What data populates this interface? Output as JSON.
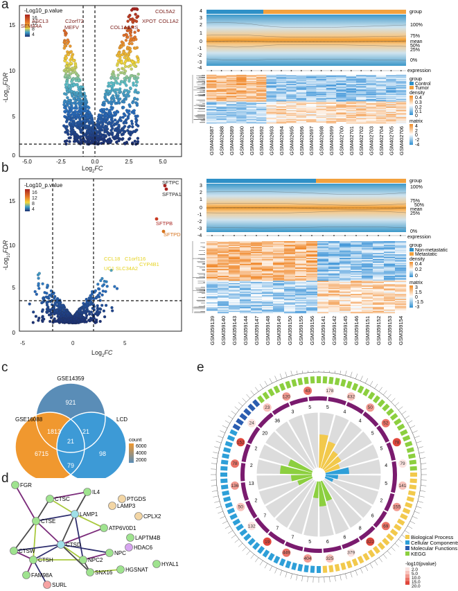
{
  "panel_letters": [
    "a",
    "b",
    "c",
    "d",
    "e"
  ],
  "panel_a": {
    "legend_title": "-Log10_p.value",
    "legend_ticks": [
      "16",
      "12",
      "8",
      "4"
    ],
    "ylabel": "-Log10FDR",
    "xlabel": "Log2FC",
    "xticks": [
      "-5.0",
      "-2.5",
      "0.0",
      "2.5",
      "5.0"
    ],
    "yticks": [
      "0",
      "5",
      "10",
      "15"
    ],
    "gene_labels": [
      "ASCL3",
      "SEMA4A",
      "C2orf72",
      "MEFV",
      "COL1A1",
      "ARS",
      "XPOT",
      "COL5A2",
      "COL1A2"
    ],
    "heatmap": {
      "group_label": "group",
      "expression_label": "expression",
      "yticks": [
        "4",
        "3",
        "2",
        "1",
        "0",
        "-1",
        "-2",
        "-3",
        "-4"
      ],
      "quantiles": [
        "100%",
        "75%",
        "mean",
        "50%",
        "25%",
        "0%"
      ],
      "legend_group_title": "group",
      "legend_group_items": [
        "Control",
        "Tumor"
      ],
      "legend_density_title": "density",
      "legend_density_ticks": [
        "0.4",
        "0.3",
        "0.2",
        "0.1",
        "0"
      ],
      "legend_matrix_title": "matrix",
      "legend_matrix_ticks": [
        "4",
        "2",
        "0",
        "-2",
        "-4"
      ],
      "samples": [
        "GSM402687",
        "GSM402688",
        "GSM402689",
        "GSM402690",
        "GSM402691",
        "GSM402692",
        "GSM402693",
        "GSM402694",
        "GSM402695",
        "GSM402696",
        "GSM402697",
        "GSM402698",
        "GSM402699",
        "GSM402700",
        "GSM402701",
        "GSM402702",
        "GSM402703",
        "GSM402704",
        "GSM402705",
        "GSM402706"
      ]
    }
  },
  "panel_b": {
    "legend_title": "-Log10_p.value",
    "legend_ticks": [
      "16",
      "12",
      "8",
      "4"
    ],
    "ylabel": "-Log10FDR",
    "xlabel": "Log2FC",
    "xticks": [
      "-5",
      "0",
      "5"
    ],
    "yticks": [
      "0",
      "5",
      "10",
      "15"
    ],
    "gene_labels": [
      "SFTPC",
      "SFTPA1",
      "SFTPB",
      "SFTPD",
      "CCL18",
      "C1orf116",
      "UC1",
      "SLC34A2",
      "CYP4B1"
    ],
    "heatmap": {
      "group_label": "group",
      "expression_label": "expression",
      "yticks": [
        "3",
        "2",
        "1",
        "0",
        "-1",
        "-2",
        "-3",
        "-4"
      ],
      "quantiles": [
        "100%",
        "75%",
        "50%",
        "mean",
        "25%",
        "0%"
      ],
      "legend_group_title": "group",
      "legend_group_items": [
        "Non-metastatic",
        "Metastatic"
      ],
      "legend_density_title": "density",
      "legend_density_ticks": [
        "0.4",
        "0.2",
        "0"
      ],
      "legend_matrix_title": "matrix",
      "legend_matrix_ticks": [
        "3",
        "1.5",
        "0",
        "-1.5",
        "-3"
      ],
      "samples": [
        "GSM359139",
        "GSM359140",
        "GSM359143",
        "GSM359144",
        "GSM359147",
        "GSM359148",
        "GSM359149",
        "GSM359150",
        "GSM359155",
        "GSM359156",
        "GSM359141",
        "GSM359142",
        "GSM359145",
        "GSM359146",
        "GSM359151",
        "GSM359152",
        "GSM359153",
        "GSM359154"
      ]
    }
  },
  "panel_c": {
    "sets": [
      "GSE14359",
      "GSE16088",
      "LCD"
    ],
    "counts": {
      "top_only": "921",
      "left_only": "6715",
      "right_only": "98",
      "top_left": "1813",
      "top_right": "21",
      "left_right": "79",
      "center": "21"
    },
    "legend_title": "count",
    "legend_ticks": [
      "6000",
      "4000",
      "2000"
    ]
  },
  "panel_d": {
    "nodes": [
      "FGR",
      "CTSC",
      "IL4",
      "PTGDS",
      "LAMP3",
      "LAMP1",
      "CPLX2",
      "CTSE",
      "ATP6V0D1",
      "LAPTM4B",
      "HDAC6",
      "CTSW",
      "CTSD",
      "NPC",
      "CTSH",
      "NPC2",
      "FAM98A",
      "SNX16",
      "HGSNAT",
      "HYAL1",
      "SURL"
    ]
  },
  "panel_e": {
    "legend_items": [
      "Biological Process",
      "Cellular Components",
      "Molecular Functions",
      "KEGG"
    ],
    "legend_colors": [
      "#f2c94c",
      "#2e9fd8",
      "#2b5db0",
      "#8ccf3f"
    ],
    "pvalue_title": "-log10(pvalue)",
    "pvalue_ticks": [
      "2.0",
      "5.0",
      "10.0",
      "15.0",
      "20.0"
    ],
    "inner_counts": [
      "178",
      "432",
      "50",
      "52",
      "78",
      "79",
      "141",
      "155",
      "69",
      "322",
      "379",
      "325",
      "404",
      "449",
      "19",
      "132",
      "50",
      "136",
      "78",
      "152",
      "24",
      "23",
      "120",
      "43"
    ],
    "ring_counts": [
      "5",
      "4",
      "4",
      "5",
      "5",
      "4",
      "5",
      "2",
      "6",
      "8",
      "6",
      "6",
      "5",
      "7",
      "7",
      "7",
      "2",
      "13",
      "2",
      "2",
      "20",
      "36",
      "3",
      "5"
    ]
  }
}
